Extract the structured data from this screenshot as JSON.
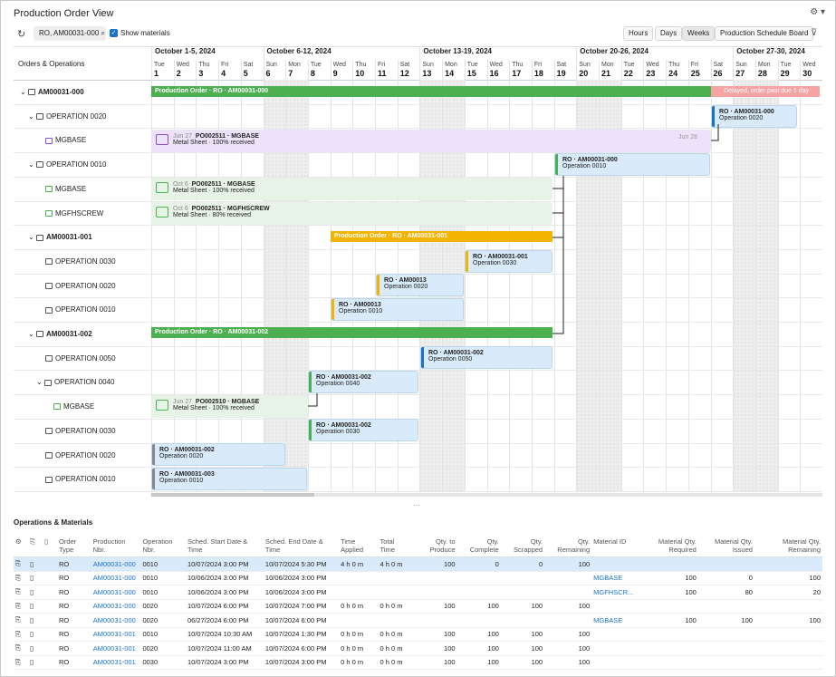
{
  "app": {
    "title": "Production Order View",
    "settings_icon": "gear-icon"
  },
  "toolbar": {
    "refresh_icon": "refresh-icon",
    "search_value": "RO, AM00031-000",
    "show_materials": "Show materials",
    "buttons": [
      "Hours",
      "Days",
      "Weeks",
      "Production Schedule Board"
    ],
    "active": "Weeks",
    "filter_icon": "filter-icon"
  },
  "gantt": {
    "left_header": "Orders & Operations",
    "weeks": [
      "October 1-5, 2024",
      "October 6-12, 2024",
      "October 13-19, 2024",
      "October 20-26, 2024",
      "October 27-30, 2024"
    ],
    "days": [
      [
        "Tue",
        "1"
      ],
      [
        "Wed",
        "2"
      ],
      [
        "Thu",
        "3"
      ],
      [
        "Fri",
        "4"
      ],
      [
        "Sat",
        "5"
      ],
      [
        "Sun",
        "6"
      ],
      [
        "Mon",
        "7"
      ],
      [
        "Tue",
        "8"
      ],
      [
        "Wed",
        "9"
      ],
      [
        "Thu",
        "10"
      ],
      [
        "Fri",
        "11"
      ],
      [
        "Sat",
        "12"
      ],
      [
        "Sun",
        "13"
      ],
      [
        "Mon",
        "14"
      ],
      [
        "Tue",
        "15"
      ],
      [
        "Wed",
        "16"
      ],
      [
        "Thu",
        "17"
      ],
      [
        "Fri",
        "18"
      ],
      [
        "Sat",
        "19"
      ],
      [
        "Sun",
        "20"
      ],
      [
        "Mon",
        "21"
      ],
      [
        "Tue",
        "22"
      ],
      [
        "Wed",
        "23"
      ],
      [
        "Thu",
        "24"
      ],
      [
        "Fri",
        "25"
      ],
      [
        "Sat",
        "26"
      ],
      [
        "Sun",
        "27"
      ],
      [
        "Mon",
        "28"
      ],
      [
        "Tue",
        "29"
      ],
      [
        "Wed",
        "30"
      ]
    ],
    "rows": [
      "AM00031-000",
      "OPERATION 0020",
      "MGBASE",
      "OPERATION 0010",
      "MGBASE",
      "MGFHSCREW",
      "AM00031-001",
      "OPERATION 0030",
      "OPERATION 0020",
      "OPERATION 0010",
      "AM00031-002",
      "OPERATION 0050",
      "OPERATION 0040",
      "MGBASE",
      "OPERATION 0030",
      "OPERATION 0020",
      "OPERATION 0010"
    ],
    "bars": {
      "po000": "Production Order · RO · AM00031-000",
      "delayed": "Delayed, order past due 1 day",
      "po001": "Production Order · RO · AM00031-001",
      "po002": "Production Order · RO · AM00031-002"
    },
    "cards": [
      {
        "t": "RO · AM00031-000",
        "s": "Operation 0020"
      },
      {
        "t": "RO · AM00031-000",
        "s": "Operation 0010"
      },
      {
        "t": "RO · AM00031-001",
        "s": "Operation 0030"
      },
      {
        "t": "RO · AM00013",
        "s": "Operation 0020"
      },
      {
        "t": "RO · AM00013",
        "s": "Operation 0010"
      },
      {
        "t": "RO · AM00031-002",
        "s": "Operation 0050"
      },
      {
        "t": "RO · AM00031-002",
        "s": "Operation 0040"
      },
      {
        "t": "RO · AM00031-002",
        "s": "Operation 0030"
      },
      {
        "t": "RO · AM00031-002",
        "s": "Operation 0020"
      },
      {
        "t": "RO · AM00031-003",
        "s": "Operation 0010"
      }
    ],
    "materials": [
      {
        "date": "Jun 27",
        "po": "PO002511 · MGBASE",
        "desc": "Metal Sheet · 100% received",
        "end": "Jun 28"
      },
      {
        "date": "Oct 6",
        "po": "PO002511 · MGBASE",
        "desc": "Metal Sheet · 100% received"
      },
      {
        "date": "Oct 6",
        "po": "PO002511 · MGFHSCREW",
        "desc": "Metal Sheet · 80% received"
      },
      {
        "date": "Jun 27",
        "po": "PO002510 · MGBASE",
        "desc": "Metal Sheet · 100% received"
      }
    ]
  },
  "ops": {
    "title": "Operations & Materials",
    "headers": [
      "Order Type",
      "Production Nbr.",
      "Operation Nbr.",
      "Sched. Start Date & Time",
      "Sched. End Date & Time",
      "Time Applied",
      "Total Time",
      "Qty. to Produce",
      "Qty. Complete",
      "Qty. Scrapped",
      "Qty. Remaining",
      "Material ID",
      "Material Qty. Required",
      "Material Qty. Issued",
      "Material Qty. Remaining"
    ],
    "rows": [
      [
        "RO",
        "AM00031-000",
        "0010",
        "10/07/2024 3:00 PM",
        "10/07/2024 5:30 PM",
        "4 h 0 m",
        "4 h 0 m",
        "100",
        "0",
        "0",
        "100",
        "",
        "",
        "",
        ""
      ],
      [
        "RO",
        "AM00031-000",
        "0010",
        "10/06/2024 3:00 PM",
        "10/06/2024 3:00 PM",
        "",
        "",
        "",
        "",
        "",
        "",
        "MGBASE",
        "100",
        "0",
        "100"
      ],
      [
        "RO",
        "AM00031-000",
        "0010",
        "10/06/2024 3:00 PM",
        "10/06/2024 3:00 PM",
        "",
        "",
        "",
        "",
        "",
        "",
        "MGFHSCR...",
        "100",
        "80",
        "20"
      ],
      [
        "RO",
        "AM00031-000",
        "0020",
        "10/07/2024 6:00 PM",
        "10/07/2024 7:00 PM",
        "0 h 0 m",
        "0 h 0 m",
        "100",
        "100",
        "100",
        "100",
        "",
        "",
        "",
        ""
      ],
      [
        "RO",
        "AM00031-000",
        "0020",
        "06/27/2024 6:00 PM",
        "10/07/2024 6:00 PM",
        "",
        "",
        "",
        "",
        "",
        "",
        "MGBASE",
        "100",
        "100",
        "100"
      ],
      [
        "RO",
        "AM00031-001",
        "0010",
        "10/07/2024 10:30 AM",
        "10/07/2024 1:30 PM",
        "0 h 0 m",
        "0 h 0 m",
        "100",
        "100",
        "100",
        "100",
        "",
        "",
        "",
        ""
      ],
      [
        "RO",
        "AM00031-001",
        "0020",
        "10/07/2024 11:00 AM",
        "10/07/2024 6:00 PM",
        "0 h 0 m",
        "0 h 0 m",
        "100",
        "100",
        "100",
        "100",
        "",
        "",
        "",
        ""
      ],
      [
        "RO",
        "AM00031-001",
        "0030",
        "10/07/2024 3:00 PM",
        "10/07/2024 3:00 PM",
        "0 h 0 m",
        "0 h 0 m",
        "100",
        "100",
        "100",
        "100",
        "",
        "",
        "",
        ""
      ]
    ]
  }
}
